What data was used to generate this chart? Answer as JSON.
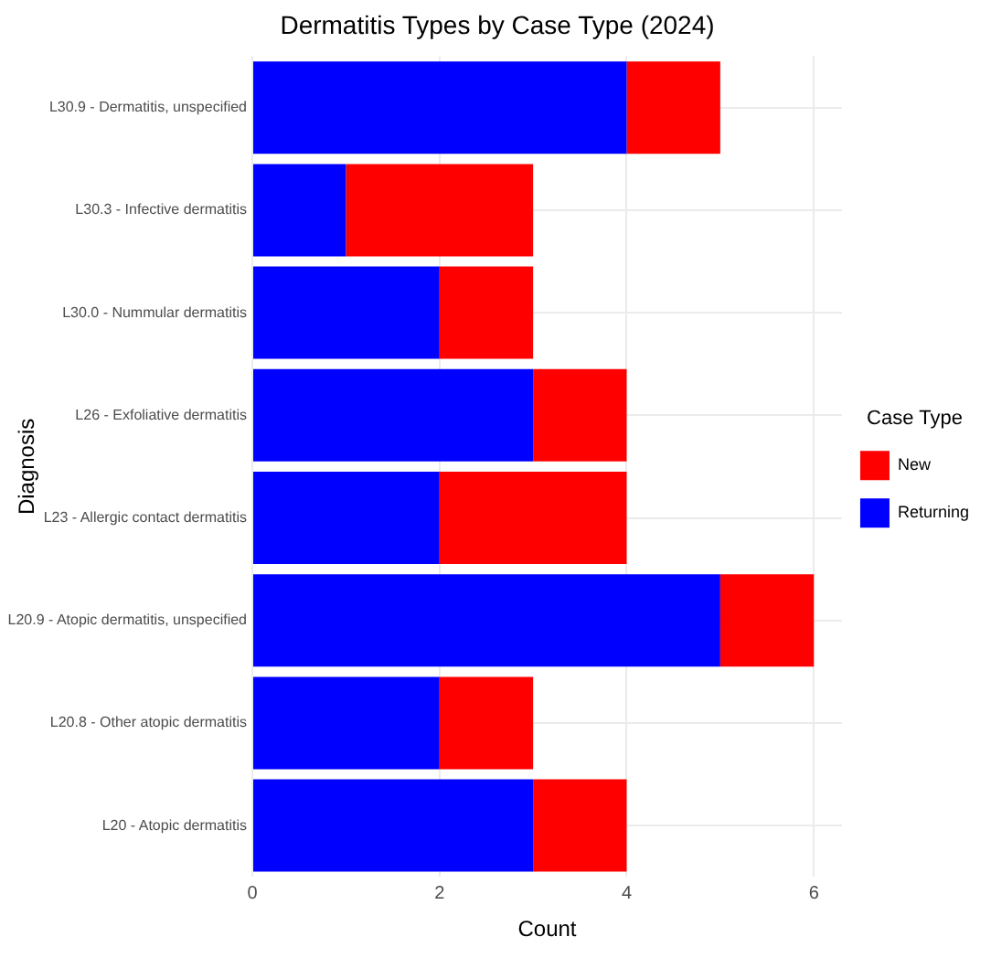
{
  "chart_data": {
    "type": "bar",
    "orientation": "horizontal",
    "stacked": true,
    "title": "Dermatitis Types by Case Type (2024)",
    "xlabel": "Count",
    "ylabel": "Diagnosis",
    "legend_title": "Case Type",
    "legend": "right",
    "categories": [
      "L30.9 - Dermatitis, unspecified",
      "L30.3 - Infective dermatitis",
      "L30.0 - Nummular dermatitis",
      "L26 - Exfoliative dermatitis",
      "L23 - Allergic contact dermatitis",
      "L20.9 - Atopic dermatitis, unspecified",
      "L20.8 - Other atopic dermatitis",
      "L20 - Atopic dermatitis"
    ],
    "series": [
      {
        "name": "Returning",
        "color": "#0000ff",
        "values": [
          4,
          1,
          2,
          3,
          2,
          5,
          2,
          3
        ]
      },
      {
        "name": "New",
        "color": "#ff0000",
        "values": [
          1,
          2,
          1,
          1,
          2,
          1,
          1,
          1
        ]
      }
    ],
    "xlim": [
      0,
      6.3
    ],
    "xticks": [
      0,
      2,
      4,
      6
    ],
    "grid": true
  }
}
